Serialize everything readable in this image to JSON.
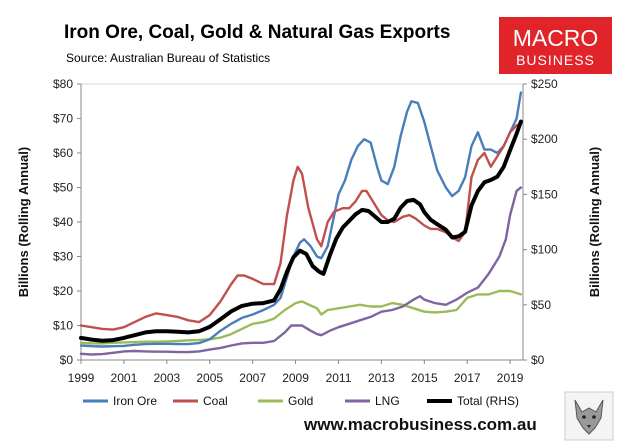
{
  "chart_data": {
    "type": "line",
    "title": "Iron Ore, Coal, Gold & Natural Gas Exports",
    "subtitle": "Source: Australian Bureau of Statistics",
    "ylabel_left": "Billions (Rolling Annual)",
    "ylabel_right": "Billions (Rolling Annual)",
    "xlim": [
      1999,
      2019.6
    ],
    "ylim_left": [
      0,
      80
    ],
    "ylim_right": [
      0,
      250
    ],
    "x_ticks": [
      "1999",
      "2001",
      "2003",
      "2005",
      "2007",
      "2009",
      "2011",
      "2013",
      "2015",
      "2017",
      "2019"
    ],
    "y_ticks_left": [
      "$0",
      "$10",
      "$20",
      "$30",
      "$40",
      "$50",
      "$60",
      "$70",
      "$80"
    ],
    "y_ticks_right": [
      "$0",
      "$50",
      "$100",
      "$150",
      "$200",
      "$250"
    ],
    "grid": false,
    "legend_position": "bottom",
    "series": [
      {
        "name": "Iron Ore",
        "axis": "left",
        "color": "#4a7ebb",
        "points": [
          [
            1999,
            4.2
          ],
          [
            1999.5,
            4
          ],
          [
            2000,
            3.9
          ],
          [
            2000.5,
            4
          ],
          [
            2001,
            4.1
          ],
          [
            2001.5,
            4.4
          ],
          [
            2002,
            4.6
          ],
          [
            2002.5,
            4.7
          ],
          [
            2003,
            4.7
          ],
          [
            2003.5,
            4.6
          ],
          [
            2004,
            4.6
          ],
          [
            2004.5,
            4.9
          ],
          [
            2005,
            6
          ],
          [
            2005.5,
            8.5
          ],
          [
            2006,
            10.5
          ],
          [
            2006.5,
            12.2
          ],
          [
            2007,
            13.2
          ],
          [
            2007.5,
            14.5
          ],
          [
            2008,
            16
          ],
          [
            2008.3,
            18
          ],
          [
            2008.6,
            24
          ],
          [
            2008.9,
            30
          ],
          [
            2009.2,
            34
          ],
          [
            2009.4,
            35
          ],
          [
            2009.7,
            33
          ],
          [
            2010,
            30
          ],
          [
            2010.2,
            29.5
          ],
          [
            2010.5,
            33
          ],
          [
            2010.8,
            42
          ],
          [
            2011,
            48
          ],
          [
            2011.3,
            52
          ],
          [
            2011.6,
            58
          ],
          [
            2011.9,
            62
          ],
          [
            2012.2,
            64
          ],
          [
            2012.5,
            63
          ],
          [
            2012.8,
            56
          ],
          [
            2013,
            52
          ],
          [
            2013.3,
            51
          ],
          [
            2013.6,
            56
          ],
          [
            2013.9,
            65
          ],
          [
            2014.2,
            72
          ],
          [
            2014.4,
            75
          ],
          [
            2014.7,
            74.5
          ],
          [
            2015,
            69
          ],
          [
            2015.3,
            62
          ],
          [
            2015.6,
            55
          ],
          [
            2016,
            50
          ],
          [
            2016.3,
            47.5
          ],
          [
            2016.6,
            49
          ],
          [
            2016.9,
            53
          ],
          [
            2017.2,
            62
          ],
          [
            2017.5,
            66
          ],
          [
            2017.8,
            61
          ],
          [
            2018.1,
            61
          ],
          [
            2018.4,
            60
          ],
          [
            2018.7,
            62
          ],
          [
            2019,
            66
          ],
          [
            2019.3,
            70
          ],
          [
            2019.5,
            77.5
          ]
        ]
      },
      {
        "name": "Coal",
        "axis": "left",
        "color": "#c0504d",
        "points": [
          [
            1999,
            10
          ],
          [
            1999.5,
            9.5
          ],
          [
            2000,
            9
          ],
          [
            2000.5,
            8.8
          ],
          [
            2001,
            9.5
          ],
          [
            2001.5,
            11
          ],
          [
            2002,
            12.5
          ],
          [
            2002.5,
            13.5
          ],
          [
            2003,
            13
          ],
          [
            2003.5,
            12.5
          ],
          [
            2004,
            11.5
          ],
          [
            2004.5,
            11
          ],
          [
            2005,
            13
          ],
          [
            2005.5,
            17
          ],
          [
            2006,
            22
          ],
          [
            2006.3,
            24.5
          ],
          [
            2006.6,
            24.5
          ],
          [
            2007,
            23.5
          ],
          [
            2007.5,
            22
          ],
          [
            2008,
            22
          ],
          [
            2008.3,
            28
          ],
          [
            2008.6,
            42
          ],
          [
            2008.9,
            52
          ],
          [
            2009.1,
            56
          ],
          [
            2009.3,
            54
          ],
          [
            2009.6,
            44
          ],
          [
            2010,
            35
          ],
          [
            2010.2,
            33
          ],
          [
            2010.5,
            40
          ],
          [
            2010.8,
            43
          ],
          [
            2011.2,
            44
          ],
          [
            2011.5,
            44
          ],
          [
            2011.8,
            46
          ],
          [
            2012.1,
            49
          ],
          [
            2012.3,
            49
          ],
          [
            2012.6,
            46
          ],
          [
            2013,
            42
          ],
          [
            2013.3,
            40.5
          ],
          [
            2013.6,
            40
          ],
          [
            2014,
            41.5
          ],
          [
            2014.3,
            42
          ],
          [
            2014.6,
            41
          ],
          [
            2015,
            39
          ],
          [
            2015.3,
            38
          ],
          [
            2015.6,
            38
          ],
          [
            2016,
            37
          ],
          [
            2016.3,
            35.5
          ],
          [
            2016.6,
            34.5
          ],
          [
            2016.9,
            37
          ],
          [
            2017.2,
            53
          ],
          [
            2017.5,
            58
          ],
          [
            2017.8,
            60
          ],
          [
            2018.1,
            56
          ],
          [
            2018.4,
            59
          ],
          [
            2018.7,
            62
          ],
          [
            2019,
            66
          ],
          [
            2019.3,
            68
          ],
          [
            2019.5,
            68.5
          ]
        ]
      },
      {
        "name": "Gold",
        "axis": "left",
        "color": "#9bbb59",
        "points": [
          [
            1999,
            5
          ],
          [
            1999.5,
            4.8
          ],
          [
            2000,
            4.8
          ],
          [
            2000.5,
            5
          ],
          [
            2001,
            5.1
          ],
          [
            2001.5,
            5.2
          ],
          [
            2002,
            5.3
          ],
          [
            2002.5,
            5.3
          ],
          [
            2003,
            5.4
          ],
          [
            2003.5,
            5.5
          ],
          [
            2004,
            5.7
          ],
          [
            2004.5,
            5.8
          ],
          [
            2005,
            6
          ],
          [
            2005.5,
            6.5
          ],
          [
            2006,
            7.5
          ],
          [
            2006.5,
            9
          ],
          [
            2007,
            10.5
          ],
          [
            2007.5,
            11
          ],
          [
            2008,
            12
          ],
          [
            2008.5,
            14.5
          ],
          [
            2009,
            16.5
          ],
          [
            2009.3,
            17
          ],
          [
            2009.7,
            15.8
          ],
          [
            2010,
            15
          ],
          [
            2010.2,
            13.2
          ],
          [
            2010.5,
            14.5
          ],
          [
            2011,
            15
          ],
          [
            2011.5,
            15.5
          ],
          [
            2012,
            16
          ],
          [
            2012.5,
            15.5
          ],
          [
            2013,
            15.5
          ],
          [
            2013.5,
            16.5
          ],
          [
            2014,
            16
          ],
          [
            2014.5,
            15
          ],
          [
            2015,
            14
          ],
          [
            2015.5,
            13.8
          ],
          [
            2016,
            14
          ],
          [
            2016.5,
            14.5
          ],
          [
            2017,
            18
          ],
          [
            2017.5,
            19
          ],
          [
            2018,
            19
          ],
          [
            2018.5,
            20
          ],
          [
            2019,
            20
          ],
          [
            2019.5,
            19
          ]
        ]
      },
      {
        "name": "LNG",
        "axis": "left",
        "color": "#8064a2",
        "points": [
          [
            1999,
            1.8
          ],
          [
            1999.5,
            1.6
          ],
          [
            2000,
            1.7
          ],
          [
            2000.5,
            2.1
          ],
          [
            2001,
            2.5
          ],
          [
            2001.5,
            2.6
          ],
          [
            2002,
            2.5
          ],
          [
            2002.5,
            2.4
          ],
          [
            2003,
            2.4
          ],
          [
            2003.5,
            2.3
          ],
          [
            2004,
            2.3
          ],
          [
            2004.5,
            2.5
          ],
          [
            2005,
            3
          ],
          [
            2005.5,
            3.5
          ],
          [
            2006,
            4.2
          ],
          [
            2006.5,
            4.8
          ],
          [
            2007,
            5
          ],
          [
            2007.5,
            5
          ],
          [
            2008,
            5.5
          ],
          [
            2008.5,
            8
          ],
          [
            2008.8,
            10
          ],
          [
            2009.3,
            10
          ],
          [
            2009.7,
            8.5
          ],
          [
            2010,
            7.5
          ],
          [
            2010.2,
            7.2
          ],
          [
            2010.6,
            8.5
          ],
          [
            2011,
            9.5
          ],
          [
            2011.5,
            10.5
          ],
          [
            2012,
            11.5
          ],
          [
            2012.5,
            12.5
          ],
          [
            2013,
            14
          ],
          [
            2013.5,
            14.5
          ],
          [
            2014,
            15.5
          ],
          [
            2014.5,
            17.5
          ],
          [
            2014.8,
            18.5
          ],
          [
            2015,
            17.5
          ],
          [
            2015.5,
            16.5
          ],
          [
            2016,
            16
          ],
          [
            2016.5,
            17.5
          ],
          [
            2017,
            19.5
          ],
          [
            2017.5,
            21
          ],
          [
            2018,
            25
          ],
          [
            2018.5,
            30
          ],
          [
            2018.8,
            35
          ],
          [
            2019,
            42
          ],
          [
            2019.3,
            49
          ],
          [
            2019.5,
            50
          ]
        ]
      },
      {
        "name": "Total (RHS)",
        "axis": "right",
        "color": "#000000",
        "points": [
          [
            1999,
            20
          ],
          [
            1999.5,
            18.5
          ],
          [
            2000,
            17.5
          ],
          [
            2000.5,
            18
          ],
          [
            2001,
            20
          ],
          [
            2001.5,
            22.5
          ],
          [
            2002,
            25
          ],
          [
            2002.5,
            26
          ],
          [
            2003,
            26
          ],
          [
            2003.5,
            25.5
          ],
          [
            2004,
            25
          ],
          [
            2004.5,
            26
          ],
          [
            2005,
            30
          ],
          [
            2005.5,
            37
          ],
          [
            2006,
            44
          ],
          [
            2006.5,
            49
          ],
          [
            2007,
            51
          ],
          [
            2007.5,
            51.5
          ],
          [
            2008,
            54
          ],
          [
            2008.3,
            64
          ],
          [
            2008.6,
            80
          ],
          [
            2008.9,
            93
          ],
          [
            2009.2,
            99
          ],
          [
            2009.5,
            96
          ],
          [
            2009.8,
            85
          ],
          [
            2010.1,
            80
          ],
          [
            2010.3,
            78
          ],
          [
            2010.6,
            95
          ],
          [
            2010.9,
            110
          ],
          [
            2011.2,
            120
          ],
          [
            2011.5,
            126
          ],
          [
            2011.8,
            132
          ],
          [
            2012.1,
            136
          ],
          [
            2012.4,
            135
          ],
          [
            2012.7,
            130
          ],
          [
            2013,
            125
          ],
          [
            2013.3,
            125
          ],
          [
            2013.6,
            128
          ],
          [
            2013.9,
            138
          ],
          [
            2014.2,
            144
          ],
          [
            2014.5,
            145
          ],
          [
            2014.8,
            141
          ],
          [
            2015,
            134
          ],
          [
            2015.3,
            127
          ],
          [
            2015.6,
            123
          ],
          [
            2016,
            118
          ],
          [
            2016.3,
            111
          ],
          [
            2016.6,
            112
          ],
          [
            2016.9,
            116
          ],
          [
            2017.2,
            140
          ],
          [
            2017.5,
            153
          ],
          [
            2017.8,
            161
          ],
          [
            2018.1,
            163
          ],
          [
            2018.4,
            166
          ],
          [
            2018.7,
            175
          ],
          [
            2019,
            190
          ],
          [
            2019.3,
            205
          ],
          [
            2019.5,
            216
          ]
        ]
      }
    ]
  },
  "branding": {
    "logo_line1": "MACRO",
    "logo_line2": "BUSINESS",
    "logo_color": "#e0242a",
    "url": "www.macrobusiness.com.au",
    "mascot_icon": "wolf-icon"
  }
}
